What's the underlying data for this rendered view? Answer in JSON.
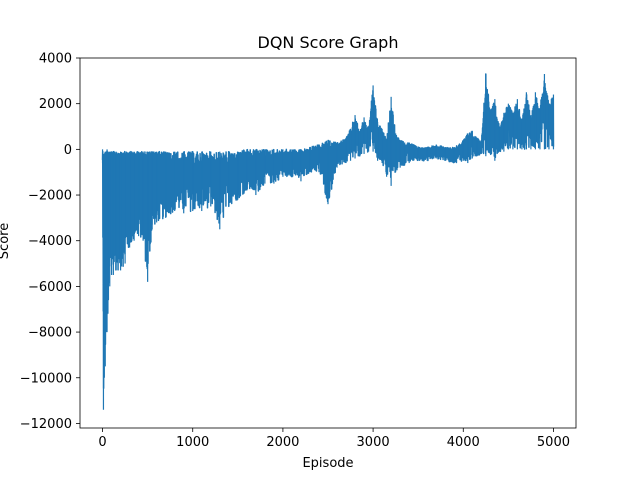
{
  "chart_data": {
    "type": "line",
    "title": "DQN Score Graph",
    "xlabel": "Episode",
    "ylabel": "Score",
    "xlim": [
      -250,
      5250
    ],
    "ylim": [
      -12200,
      4000
    ],
    "xticks": [
      0,
      1000,
      2000,
      3000,
      4000,
      5000
    ],
    "xtick_labels": [
      "0",
      "1000",
      "2000",
      "3000",
      "4000",
      "5000"
    ],
    "yticks": [
      -12000,
      -10000,
      -8000,
      -6000,
      -4000,
      -2000,
      0,
      2000,
      4000
    ],
    "ytick_labels": [
      "−12000",
      "−10000",
      "−8000",
      "−6000",
      "−4000",
      "−2000",
      "0",
      "2000",
      "4000"
    ],
    "grid": false,
    "series": [
      {
        "color": "#1f77b4",
        "x": [
          0,
          10,
          20,
          30,
          40,
          50,
          60,
          80,
          100,
          120,
          150,
          200,
          250,
          300,
          350,
          400,
          450,
          500,
          550,
          600,
          700,
          800,
          900,
          1000,
          1100,
          1200,
          1300,
          1400,
          1500,
          1600,
          1700,
          1800,
          1900,
          2000,
          2100,
          2200,
          2300,
          2400,
          2500,
          2600,
          2700,
          2750,
          2800,
          2850,
          2900,
          2950,
          3000,
          3050,
          3100,
          3150,
          3200,
          3250,
          3300,
          3350,
          3400,
          3450,
          3500,
          3600,
          3700,
          3800,
          3900,
          4000,
          4050,
          4100,
          4150,
          4200,
          4250,
          4300,
          4350,
          4400,
          4450,
          4500,
          4550,
          4600,
          4650,
          4700,
          4750,
          4800,
          4850,
          4900,
          4950,
          5000
        ],
        "lower": [
          -600,
          -11400,
          -10000,
          -9500,
          -8000,
          -8000,
          -7200,
          -6000,
          -5500,
          -5500,
          -5300,
          -5300,
          -5000,
          -4300,
          -4000,
          -3800,
          -4000,
          -5800,
          -3500,
          -3200,
          -3000,
          -2700,
          -2800,
          -2700,
          -2700,
          -2500,
          -3500,
          -2500,
          -2200,
          -1800,
          -2000,
          -1500,
          -1500,
          -1200,
          -1200,
          -1400,
          -1000,
          -1000,
          -2400,
          -800,
          -600,
          -500,
          -400,
          -300,
          -200,
          -100,
          -100,
          -500,
          -600,
          -1200,
          -1600,
          -1000,
          -800,
          -700,
          -600,
          -500,
          -500,
          -500,
          -400,
          -500,
          -600,
          -500,
          -600,
          -400,
          -300,
          -200,
          -300,
          -200,
          -500,
          -100,
          -100,
          0,
          0,
          0,
          0,
          0,
          0,
          0,
          0,
          0,
          0,
          0
        ],
        "upper": [
          0,
          -200,
          -200,
          -100,
          -100,
          0,
          -100,
          -100,
          -100,
          -100,
          -100,
          -100,
          -100,
          -100,
          -100,
          -100,
          -100,
          -100,
          -100,
          -100,
          -100,
          -100,
          -100,
          -100,
          -100,
          -100,
          -100,
          -100,
          -100,
          0,
          0,
          0,
          0,
          0,
          0,
          0,
          100,
          200,
          400,
          300,
          500,
          900,
          1500,
          800,
          1400,
          900,
          2800,
          1200,
          900,
          400,
          2300,
          700,
          400,
          300,
          300,
          200,
          100,
          100,
          200,
          100,
          100,
          400,
          700,
          800,
          500,
          400,
          3300,
          1700,
          2200,
          1000,
          1600,
          2000,
          1600,
          2200,
          1200,
          2500,
          1500,
          2500,
          1800,
          3300,
          2000,
          2400
        ]
      }
    ]
  }
}
